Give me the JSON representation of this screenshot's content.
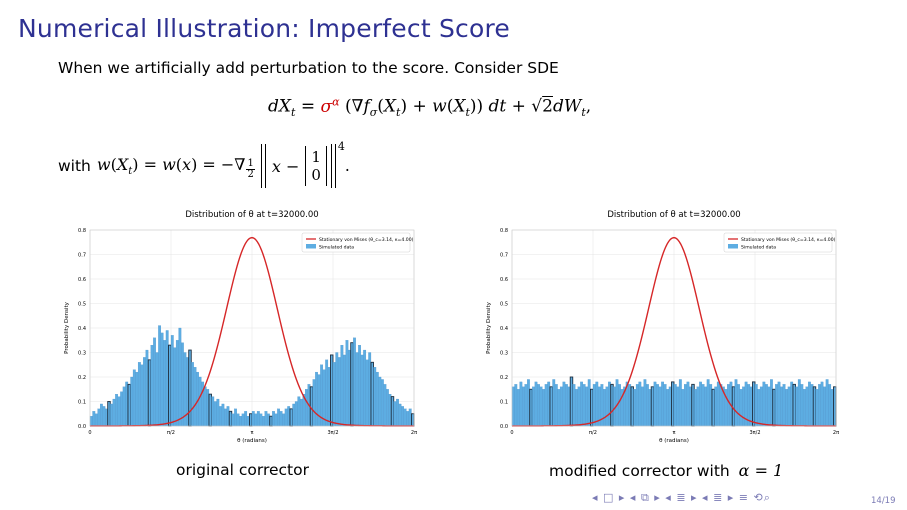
{
  "slide": {
    "title": "Numerical Illustration: Imperfect Score",
    "intro": "When we artificially add perturbation to the score. Consider SDE",
    "with_word": "with",
    "page": "14/19"
  },
  "captions": {
    "left": "original corrector",
    "right_text": "modified corrector with",
    "right_math": "α = 1"
  },
  "nav_symbols": "◂ □ ▸ ◂ ⧉ ▸ ◂ ≣ ▸ ◂ ≣ ▸   ≡   ⟲⌕",
  "chart_data": [
    {
      "type": "bar",
      "title": "Distribution of θ at t=32000.00",
      "xlabel": "θ (radians)",
      "ylabel": "Probability Density",
      "ylim": [
        0,
        0.8
      ],
      "xticks": [
        "0",
        "π/2",
        "π",
        "3π/2",
        "2π"
      ],
      "yticks": [
        "0.0",
        "0.1",
        "0.2",
        "0.3",
        "0.4",
        "0.5",
        "0.6",
        "0.7",
        "0.8"
      ],
      "legend": [
        "Stationary von Mises (θ_c=3.14, κ=4.00)",
        "Simulated data"
      ],
      "legend_position": "top-right",
      "grid": true,
      "curve": {
        "name": "Stationary von Mises (θ_c=3.14, κ=4.00)",
        "mu": 3.14,
        "kappa": 4.0,
        "color": "#d62728"
      },
      "bar_color": "#5dade2",
      "values": [
        0.04,
        0.06,
        0.05,
        0.07,
        0.09,
        0.08,
        0.07,
        0.1,
        0.09,
        0.11,
        0.13,
        0.12,
        0.14,
        0.16,
        0.18,
        0.17,
        0.2,
        0.23,
        0.22,
        0.26,
        0.25,
        0.28,
        0.31,
        0.27,
        0.33,
        0.36,
        0.3,
        0.41,
        0.38,
        0.35,
        0.39,
        0.33,
        0.37,
        0.32,
        0.35,
        0.4,
        0.34,
        0.3,
        0.28,
        0.31,
        0.26,
        0.24,
        0.22,
        0.2,
        0.18,
        0.16,
        0.15,
        0.13,
        0.12,
        0.1,
        0.11,
        0.08,
        0.09,
        0.07,
        0.08,
        0.06,
        0.05,
        0.07,
        0.05,
        0.04,
        0.05,
        0.06,
        0.04,
        0.05,
        0.06,
        0.05,
        0.06,
        0.05,
        0.04,
        0.06,
        0.05,
        0.04,
        0.06,
        0.05,
        0.07,
        0.06,
        0.05,
        0.07,
        0.08,
        0.07,
        0.09,
        0.1,
        0.12,
        0.11,
        0.13,
        0.15,
        0.17,
        0.16,
        0.19,
        0.22,
        0.21,
        0.25,
        0.23,
        0.27,
        0.24,
        0.29,
        0.26,
        0.3,
        0.28,
        0.33,
        0.29,
        0.35,
        0.31,
        0.34,
        0.36,
        0.3,
        0.33,
        0.29,
        0.31,
        0.27,
        0.3,
        0.26,
        0.24,
        0.22,
        0.2,
        0.19,
        0.17,
        0.15,
        0.13,
        0.12,
        0.1,
        0.11,
        0.09,
        0.08,
        0.07,
        0.06,
        0.07,
        0.05
      ]
    },
    {
      "type": "bar",
      "title": "Distribution of θ at t=32000.00",
      "xlabel": "θ (radians)",
      "ylabel": "Probability Density",
      "ylim": [
        0,
        0.8
      ],
      "xticks": [
        "0",
        "π/2",
        "π",
        "3π/2",
        "2π"
      ],
      "yticks": [
        "0.0",
        "0.1",
        "0.2",
        "0.3",
        "0.4",
        "0.5",
        "0.6",
        "0.7",
        "0.8"
      ],
      "legend": [
        "Stationary von Mises (θ_c=3.14, κ=4.00)",
        "Simulated data"
      ],
      "legend_position": "top-right",
      "grid": true,
      "curve": {
        "name": "Stationary von Mises (θ_c=3.14, κ=4.00)",
        "mu": 3.14,
        "kappa": 4.0,
        "color": "#d62728"
      },
      "bar_color": "#5dade2",
      "values": [
        0.16,
        0.17,
        0.15,
        0.18,
        0.16,
        0.17,
        0.19,
        0.15,
        0.16,
        0.18,
        0.17,
        0.16,
        0.15,
        0.17,
        0.18,
        0.16,
        0.19,
        0.17,
        0.15,
        0.16,
        0.18,
        0.17,
        0.16,
        0.2,
        0.17,
        0.15,
        0.16,
        0.18,
        0.17,
        0.16,
        0.19,
        0.15,
        0.17,
        0.18,
        0.16,
        0.17,
        0.15,
        0.16,
        0.18,
        0.17,
        0.16,
        0.19,
        0.17,
        0.15,
        0.16,
        0.18,
        0.17,
        0.16,
        0.15,
        0.17,
        0.18,
        0.16,
        0.19,
        0.17,
        0.15,
        0.16,
        0.18,
        0.17,
        0.16,
        0.18,
        0.17,
        0.15,
        0.16,
        0.18,
        0.17,
        0.16,
        0.19,
        0.15,
        0.17,
        0.18,
        0.16,
        0.17,
        0.15,
        0.16,
        0.18,
        0.17,
        0.16,
        0.19,
        0.17,
        0.15,
        0.16,
        0.18,
        0.17,
        0.16,
        0.15,
        0.17,
        0.18,
        0.16,
        0.19,
        0.17,
        0.15,
        0.16,
        0.18,
        0.17,
        0.16,
        0.18,
        0.17,
        0.15,
        0.16,
        0.18,
        0.17,
        0.16,
        0.19,
        0.15,
        0.17,
        0.18,
        0.16,
        0.17,
        0.15,
        0.16,
        0.18,
        0.17,
        0.16,
        0.19,
        0.17,
        0.15,
        0.16,
        0.18,
        0.17,
        0.16,
        0.15,
        0.17,
        0.18,
        0.16,
        0.19,
        0.17,
        0.15,
        0.16
      ]
    }
  ]
}
